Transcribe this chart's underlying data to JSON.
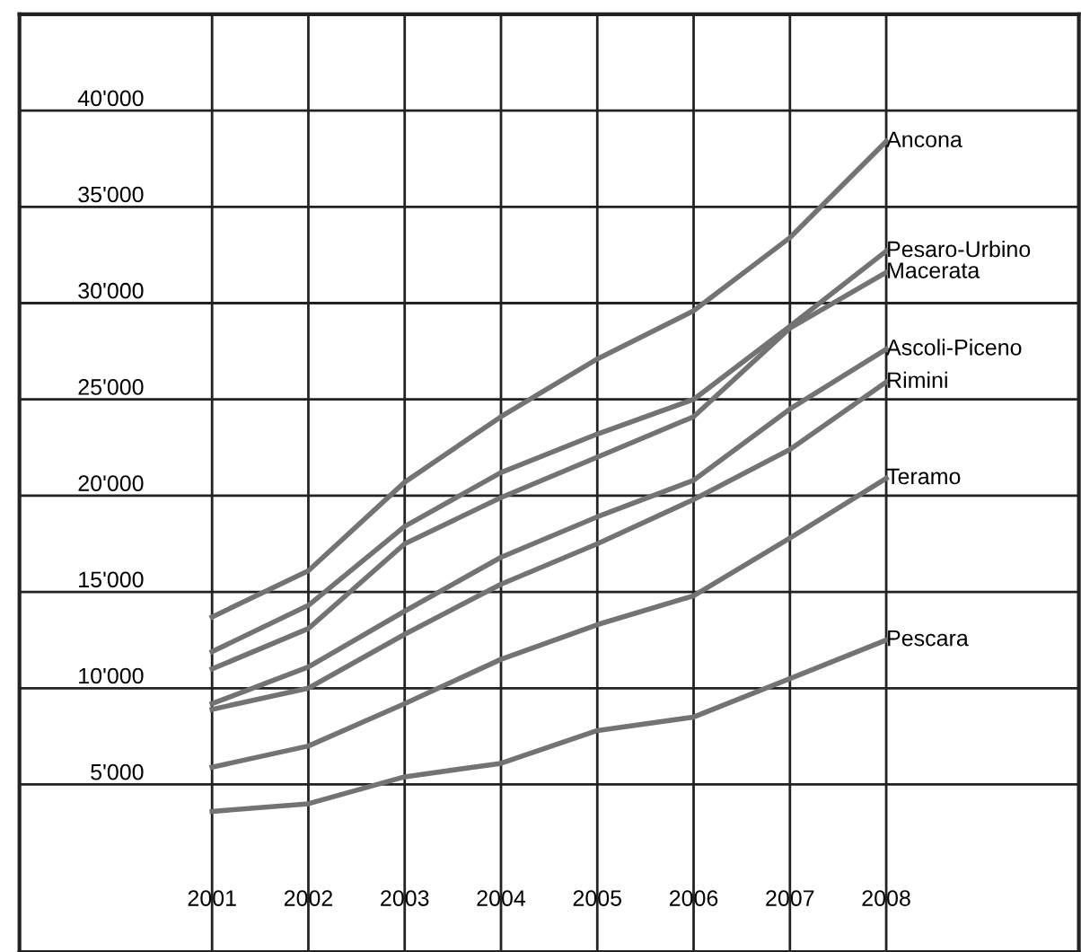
{
  "chart_data": {
    "type": "line",
    "x": [
      2001,
      2002,
      2003,
      2004,
      2005,
      2006,
      2007,
      2008
    ],
    "series": [
      {
        "name": "Ancona",
        "color": "#737373",
        "values": [
          13700,
          16100,
          20700,
          24100,
          27100,
          29600,
          33400,
          38400
        ]
      },
      {
        "name": "Pesaro-Urbino",
        "color": "#737373",
        "values": [
          11900,
          14300,
          18400,
          21200,
          23200,
          25000,
          28800,
          32700
        ]
      },
      {
        "name": "Macerata",
        "color": "#737373",
        "values": [
          11000,
          13100,
          17500,
          19900,
          22000,
          24100,
          28700,
          31600
        ]
      },
      {
        "name": "Ascoli-Piceno",
        "color": "#737373",
        "values": [
          9200,
          11100,
          14000,
          16800,
          18900,
          20800,
          24500,
          27600
        ]
      },
      {
        "name": "Rimini",
        "color": "#737373",
        "values": [
          8900,
          10000,
          12800,
          15400,
          17500,
          19800,
          22400,
          25900
        ]
      },
      {
        "name": "Teramo",
        "color": "#737373",
        "values": [
          5900,
          7000,
          9200,
          11500,
          13300,
          14800,
          17800,
          20900
        ]
      },
      {
        "name": "Pescara",
        "color": "#737373",
        "values": [
          3600,
          4000,
          5400,
          6100,
          7800,
          8500,
          10500,
          12500
        ]
      }
    ],
    "xlim": [
      1999,
      2010
    ],
    "ylim": [
      -3700,
      45000
    ],
    "xticks": [
      2001,
      2002,
      2003,
      2004,
      2005,
      2006,
      2007,
      2008
    ],
    "yticks": [
      {
        "value": 5000,
        "label": "5'000"
      },
      {
        "value": 10000,
        "label": "10'000"
      },
      {
        "value": 15000,
        "label": "15'000"
      },
      {
        "value": 20000,
        "label": "20'000"
      },
      {
        "value": 25000,
        "label": "25'000"
      },
      {
        "value": 30000,
        "label": "30'000"
      },
      {
        "value": 35000,
        "label": "35'000"
      },
      {
        "value": 40000,
        "label": "40'000"
      }
    ],
    "grid": true,
    "legend": false,
    "marker": "none",
    "line_style": "solid"
  }
}
